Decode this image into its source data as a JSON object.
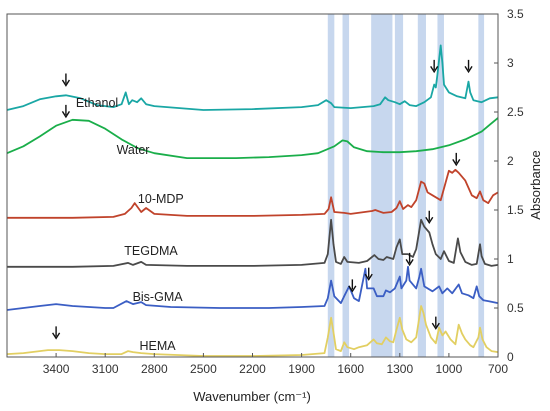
{
  "chart_data": {
    "type": "line",
    "title": "",
    "xlabel": "Wavenumber (cm⁻¹)",
    "ylabel": "Absorbance",
    "xlim": [
      3700,
      700
    ],
    "ylim": [
      0,
      3.5
    ],
    "x_ticks": [
      "3400",
      "3100",
      "2800",
      "2500",
      "2200",
      "1900",
      "1600",
      "1300",
      "1000",
      "700"
    ],
    "y_ticks": [
      "0",
      "0.5",
      "1",
      "1.5",
      "2",
      "2.5",
      "3",
      "3.5"
    ],
    "grid": false,
    "highlight_bands": [
      [
        1740,
        1700
      ],
      [
        1650,
        1610
      ],
      [
        1475,
        1345
      ],
      [
        1330,
        1280
      ],
      [
        1190,
        1140
      ],
      [
        1070,
        1030
      ],
      [
        820,
        785
      ]
    ],
    "series": [
      {
        "name": "Ethanol",
        "color": "#1aa7a5",
        "label_pos": [
          3150,
          2.55
        ],
        "arrows": [
          [
            3340,
            2.77
          ],
          [
            1090,
            2.91
          ],
          [
            880,
            2.91
          ]
        ],
        "points": [
          [
            3700,
            2.52
          ],
          [
            3600,
            2.56
          ],
          [
            3500,
            2.63
          ],
          [
            3400,
            2.66
          ],
          [
            3340,
            2.67
          ],
          [
            3250,
            2.64
          ],
          [
            3150,
            2.57
          ],
          [
            3050,
            2.55
          ],
          [
            3000,
            2.58
          ],
          [
            2975,
            2.7
          ],
          [
            2955,
            2.58
          ],
          [
            2935,
            2.62
          ],
          [
            2905,
            2.6
          ],
          [
            2880,
            2.64
          ],
          [
            2850,
            2.58
          ],
          [
            2800,
            2.56
          ],
          [
            2500,
            2.52
          ],
          [
            2200,
            2.53
          ],
          [
            1900,
            2.55
          ],
          [
            1800,
            2.57
          ],
          [
            1750,
            2.62
          ],
          [
            1720,
            2.59
          ],
          [
            1700,
            2.55
          ],
          [
            1600,
            2.54
          ],
          [
            1460,
            2.56
          ],
          [
            1420,
            2.58
          ],
          [
            1390,
            2.65
          ],
          [
            1370,
            2.62
          ],
          [
            1330,
            2.6
          ],
          [
            1300,
            2.58
          ],
          [
            1270,
            2.61
          ],
          [
            1240,
            2.57
          ],
          [
            1200,
            2.56
          ],
          [
            1150,
            2.6
          ],
          [
            1110,
            2.65
          ],
          [
            1090,
            2.78
          ],
          [
            1080,
            2.75
          ],
          [
            1070,
            2.88
          ],
          [
            1050,
            3.18
          ],
          [
            1040,
            3.0
          ],
          [
            1030,
            2.78
          ],
          [
            1000,
            2.7
          ],
          [
            950,
            2.66
          ],
          [
            900,
            2.64
          ],
          [
            880,
            2.81
          ],
          [
            870,
            2.7
          ],
          [
            850,
            2.62
          ],
          [
            800,
            2.6
          ],
          [
            750,
            2.64
          ],
          [
            700,
            2.65
          ]
        ]
      },
      {
        "name": "Water",
        "color": "#1aae4a",
        "label_pos": [
          2930,
          2.07
        ],
        "arrows": [
          [
            3340,
            2.45
          ]
        ],
        "points": [
          [
            3700,
            2.08
          ],
          [
            3600,
            2.15
          ],
          [
            3500,
            2.25
          ],
          [
            3400,
            2.36
          ],
          [
            3300,
            2.42
          ],
          [
            3200,
            2.41
          ],
          [
            3100,
            2.33
          ],
          [
            3000,
            2.22
          ],
          [
            2900,
            2.13
          ],
          [
            2800,
            2.08
          ],
          [
            2600,
            2.03
          ],
          [
            2300,
            2.03
          ],
          [
            2100,
            2.04
          ],
          [
            1900,
            2.06
          ],
          [
            1800,
            2.08
          ],
          [
            1700,
            2.15
          ],
          [
            1650,
            2.21
          ],
          [
            1620,
            2.2
          ],
          [
            1580,
            2.14
          ],
          [
            1500,
            2.1
          ],
          [
            1400,
            2.09
          ],
          [
            1300,
            2.09
          ],
          [
            1200,
            2.1
          ],
          [
            1100,
            2.12
          ],
          [
            1000,
            2.16
          ],
          [
            900,
            2.22
          ],
          [
            800,
            2.3
          ],
          [
            750,
            2.37
          ],
          [
            700,
            2.44
          ]
        ]
      },
      {
        "name": "10-MDP",
        "color": "#c0432b",
        "label_pos": [
          2760,
          1.57
        ],
        "arrows": [
          [
            955,
            1.96
          ]
        ],
        "points": [
          [
            3700,
            1.42
          ],
          [
            3300,
            1.42
          ],
          [
            3050,
            1.43
          ],
          [
            2980,
            1.46
          ],
          [
            2940,
            1.52
          ],
          [
            2920,
            1.57
          ],
          [
            2880,
            1.48
          ],
          [
            2850,
            1.52
          ],
          [
            2800,
            1.46
          ],
          [
            2600,
            1.44
          ],
          [
            2200,
            1.44
          ],
          [
            1900,
            1.45
          ],
          [
            1760,
            1.46
          ],
          [
            1735,
            1.51
          ],
          [
            1720,
            1.63
          ],
          [
            1700,
            1.48
          ],
          [
            1640,
            1.47
          ],
          [
            1600,
            1.46
          ],
          [
            1470,
            1.49
          ],
          [
            1450,
            1.5
          ],
          [
            1400,
            1.47
          ],
          [
            1350,
            1.48
          ],
          [
            1320,
            1.52
          ],
          [
            1300,
            1.59
          ],
          [
            1280,
            1.51
          ],
          [
            1250,
            1.55
          ],
          [
            1230,
            1.53
          ],
          [
            1200,
            1.6
          ],
          [
            1170,
            1.79
          ],
          [
            1150,
            1.77
          ],
          [
            1130,
            1.68
          ],
          [
            1100,
            1.65
          ],
          [
            1050,
            1.6
          ],
          [
            1020,
            1.78
          ],
          [
            1000,
            1.9
          ],
          [
            980,
            1.88
          ],
          [
            960,
            1.91
          ],
          [
            940,
            1.88
          ],
          [
            900,
            1.8
          ],
          [
            860,
            1.65
          ],
          [
            830,
            1.62
          ],
          [
            810,
            1.69
          ],
          [
            790,
            1.6
          ],
          [
            760,
            1.57
          ],
          [
            730,
            1.65
          ],
          [
            700,
            1.68
          ]
        ]
      },
      {
        "name": "TEGDMA",
        "color": "#4a4a4a",
        "label_pos": [
          2820,
          1.04
        ],
        "arrows": [
          [
            1120,
            1.37
          ]
        ],
        "points": [
          [
            3700,
            0.92
          ],
          [
            3300,
            0.92
          ],
          [
            3050,
            0.93
          ],
          [
            2960,
            0.96
          ],
          [
            2930,
            0.94
          ],
          [
            2880,
            0.97
          ],
          [
            2850,
            0.94
          ],
          [
            2600,
            0.93
          ],
          [
            2200,
            0.93
          ],
          [
            1900,
            0.94
          ],
          [
            1760,
            0.96
          ],
          [
            1740,
            1.05
          ],
          [
            1720,
            1.4
          ],
          [
            1705,
            1.15
          ],
          [
            1690,
            0.97
          ],
          [
            1660,
            0.95
          ],
          [
            1640,
            1.02
          ],
          [
            1620,
            0.97
          ],
          [
            1550,
            0.96
          ],
          [
            1500,
            0.98
          ],
          [
            1455,
            1.04
          ],
          [
            1430,
            1.0
          ],
          [
            1400,
            0.99
          ],
          [
            1380,
            1.02
          ],
          [
            1340,
            1.0
          ],
          [
            1320,
            1.12
          ],
          [
            1300,
            1.2
          ],
          [
            1285,
            1.05
          ],
          [
            1250,
            1.05
          ],
          [
            1220,
            1.02
          ],
          [
            1200,
            1.1
          ],
          [
            1170,
            1.4
          ],
          [
            1150,
            1.33
          ],
          [
            1120,
            1.27
          ],
          [
            1100,
            1.15
          ],
          [
            1080,
            1.05
          ],
          [
            1050,
            1.0
          ],
          [
            1030,
            1.08
          ],
          [
            1000,
            0.98
          ],
          [
            970,
            0.96
          ],
          [
            945,
            1.21
          ],
          [
            930,
            1.07
          ],
          [
            900,
            0.97
          ],
          [
            860,
            0.94
          ],
          [
            830,
            0.95
          ],
          [
            810,
            1.15
          ],
          [
            800,
            1.03
          ],
          [
            780,
            0.95
          ],
          [
            740,
            0.93
          ],
          [
            700,
            0.94
          ]
        ]
      },
      {
        "name": "Bis-GMA",
        "color": "#3b5ec4",
        "label_pos": [
          2780,
          0.57
        ],
        "arrows": [
          [
            1590,
            0.67
          ],
          [
            1490,
            0.79
          ],
          [
            1240,
            0.94
          ]
        ],
        "points": [
          [
            3700,
            0.48
          ],
          [
            3500,
            0.52
          ],
          [
            3400,
            0.54
          ],
          [
            3300,
            0.52
          ],
          [
            3100,
            0.5
          ],
          [
            3050,
            0.5
          ],
          [
            2970,
            0.57
          ],
          [
            2930,
            0.54
          ],
          [
            2880,
            0.56
          ],
          [
            2850,
            0.53
          ],
          [
            2700,
            0.51
          ],
          [
            2400,
            0.5
          ],
          [
            2100,
            0.5
          ],
          [
            1900,
            0.51
          ],
          [
            1760,
            0.52
          ],
          [
            1740,
            0.6
          ],
          [
            1720,
            0.78
          ],
          [
            1700,
            0.62
          ],
          [
            1660,
            0.55
          ],
          [
            1640,
            0.62
          ],
          [
            1610,
            0.72
          ],
          [
            1580,
            0.6
          ],
          [
            1550,
            0.57
          ],
          [
            1510,
            0.9
          ],
          [
            1500,
            0.7
          ],
          [
            1460,
            0.7
          ],
          [
            1440,
            0.62
          ],
          [
            1400,
            0.62
          ],
          [
            1385,
            0.68
          ],
          [
            1360,
            0.66
          ],
          [
            1330,
            0.7
          ],
          [
            1300,
            0.82
          ],
          [
            1290,
            0.7
          ],
          [
            1260,
            0.78
          ],
          [
            1250,
            0.92
          ],
          [
            1240,
            0.78
          ],
          [
            1200,
            0.7
          ],
          [
            1180,
            0.82
          ],
          [
            1170,
            0.9
          ],
          [
            1150,
            0.72
          ],
          [
            1100,
            0.67
          ],
          [
            1060,
            0.72
          ],
          [
            1040,
            0.65
          ],
          [
            1010,
            0.7
          ],
          [
            980,
            0.65
          ],
          [
            940,
            0.74
          ],
          [
            920,
            0.65
          ],
          [
            880,
            0.63
          ],
          [
            850,
            0.6
          ],
          [
            830,
            0.72
          ],
          [
            815,
            0.62
          ],
          [
            790,
            0.58
          ],
          [
            760,
            0.57
          ],
          [
            730,
            0.56
          ],
          [
            700,
            0.55
          ]
        ]
      },
      {
        "name": "HEMA",
        "color": "#e2cf62",
        "label_pos": [
          2780,
          0.07
        ],
        "arrows": [
          [
            3400,
            0.19
          ],
          [
            1080,
            0.29
          ]
        ],
        "points": [
          [
            3700,
            0.03
          ],
          [
            3600,
            0.04
          ],
          [
            3500,
            0.06
          ],
          [
            3450,
            0.07
          ],
          [
            3380,
            0.07
          ],
          [
            3300,
            0.06
          ],
          [
            3200,
            0.04
          ],
          [
            3100,
            0.03
          ],
          [
            3000,
            0.03
          ],
          [
            2960,
            0.06
          ],
          [
            2930,
            0.05
          ],
          [
            2880,
            0.04
          ],
          [
            2800,
            0.03
          ],
          [
            2500,
            0.01
          ],
          [
            2200,
            0.01
          ],
          [
            1900,
            0.02
          ],
          [
            1760,
            0.04
          ],
          [
            1740,
            0.2
          ],
          [
            1720,
            0.4
          ],
          [
            1705,
            0.25
          ],
          [
            1690,
            0.08
          ],
          [
            1660,
            0.06
          ],
          [
            1640,
            0.15
          ],
          [
            1620,
            0.1
          ],
          [
            1580,
            0.08
          ],
          [
            1550,
            0.1
          ],
          [
            1500,
            0.12
          ],
          [
            1460,
            0.18
          ],
          [
            1440,
            0.14
          ],
          [
            1410,
            0.13
          ],
          [
            1385,
            0.2
          ],
          [
            1360,
            0.16
          ],
          [
            1340,
            0.15
          ],
          [
            1320,
            0.28
          ],
          [
            1300,
            0.4
          ],
          [
            1285,
            0.28
          ],
          [
            1260,
            0.18
          ],
          [
            1230,
            0.15
          ],
          [
            1200,
            0.2
          ],
          [
            1170,
            0.52
          ],
          [
            1155,
            0.45
          ],
          [
            1140,
            0.33
          ],
          [
            1110,
            0.2
          ],
          [
            1080,
            0.14
          ],
          [
            1060,
            0.3
          ],
          [
            1040,
            0.22
          ],
          [
            1020,
            0.26
          ],
          [
            990,
            0.18
          ],
          [
            960,
            0.13
          ],
          [
            940,
            0.33
          ],
          [
            920,
            0.24
          ],
          [
            900,
            0.18
          ],
          [
            870,
            0.12
          ],
          [
            850,
            0.1
          ],
          [
            820,
            0.2
          ],
          [
            810,
            0.3
          ],
          [
            795,
            0.18
          ],
          [
            770,
            0.1
          ],
          [
            740,
            0.06
          ],
          [
            700,
            0.05
          ]
        ]
      }
    ]
  }
}
